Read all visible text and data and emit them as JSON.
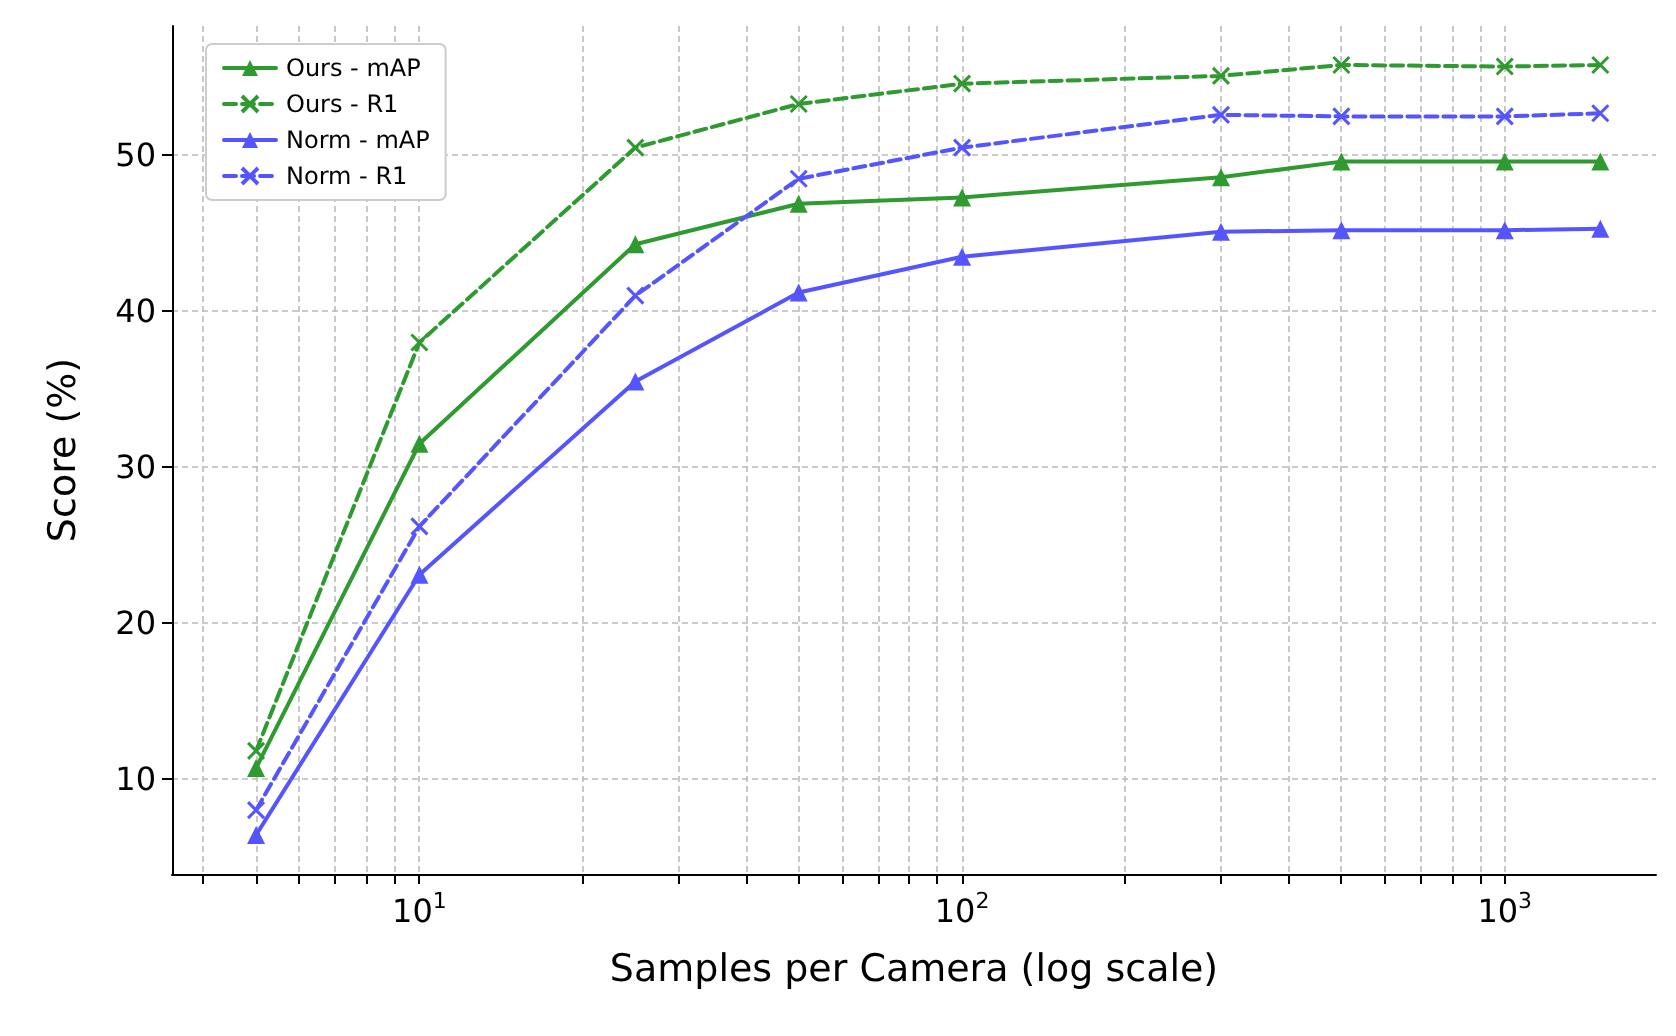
{
  "chart_data": {
    "type": "line",
    "xlabel": "Samples per Camera (log scale)",
    "ylabel": "Score (%)",
    "log": "x",
    "xlim": [
      3.5,
      1900
    ],
    "ylim": [
      3.9,
      58.3
    ],
    "xticks": [
      {
        "value": 4,
        "label": null
      },
      {
        "value": 5,
        "label": null
      },
      {
        "value": 6,
        "label": null
      },
      {
        "value": 7,
        "label": null
      },
      {
        "value": 8,
        "label": null
      },
      {
        "value": 9,
        "label": null
      },
      {
        "value": 10,
        "label": "10$^{1}$"
      },
      {
        "value": 20,
        "label": null
      },
      {
        "value": 30,
        "label": null
      },
      {
        "value": 40,
        "label": null
      },
      {
        "value": 50,
        "label": null
      },
      {
        "value": 60,
        "label": null
      },
      {
        "value": 70,
        "label": null
      },
      {
        "value": 80,
        "label": null
      },
      {
        "value": 90,
        "label": null
      },
      {
        "value": 100,
        "label": "10$^{2}$"
      },
      {
        "value": 200,
        "label": null
      },
      {
        "value": 300,
        "label": null
      },
      {
        "value": 400,
        "label": null
      },
      {
        "value": 500,
        "label": null
      },
      {
        "value": 600,
        "label": null
      },
      {
        "value": 700,
        "label": null
      },
      {
        "value": 800,
        "label": null
      },
      {
        "value": 900,
        "label": null
      },
      {
        "value": 1000,
        "label": "10$^{3}$"
      }
    ],
    "yticks": [
      10,
      20,
      30,
      40,
      50
    ],
    "x": [
      5,
      10,
      25,
      50,
      100,
      300,
      500,
      1000,
      1500
    ],
    "series": [
      {
        "name": "Ours - mAP",
        "color": "#2f9a2f",
        "marker": "triangle",
        "line_style": "solid",
        "values": [
          10.7,
          31.5,
          44.3,
          46.9,
          47.3,
          48.6,
          49.6,
          49.6,
          49.6
        ]
      },
      {
        "name": "Ours - R1",
        "color": "#2f9a2f",
        "marker": "cross",
        "line_style": "dashed",
        "values": [
          11.8,
          38.0,
          50.5,
          53.3,
          54.6,
          55.1,
          55.8,
          55.7,
          55.8
        ]
      },
      {
        "name": "Norm - mAP",
        "color": "#5555ff",
        "marker": "triangle",
        "line_style": "solid",
        "values": [
          6.4,
          23.1,
          35.5,
          41.2,
          43.5,
          45.1,
          45.2,
          45.2,
          45.3
        ]
      },
      {
        "name": "Norm - R1",
        "color": "#5555ff",
        "marker": "cross",
        "line_style": "dashed",
        "values": [
          8.0,
          26.2,
          41.0,
          48.5,
          50.5,
          52.6,
          52.5,
          52.5,
          52.7
        ]
      }
    ],
    "grid": true,
    "legend": "top left"
  }
}
